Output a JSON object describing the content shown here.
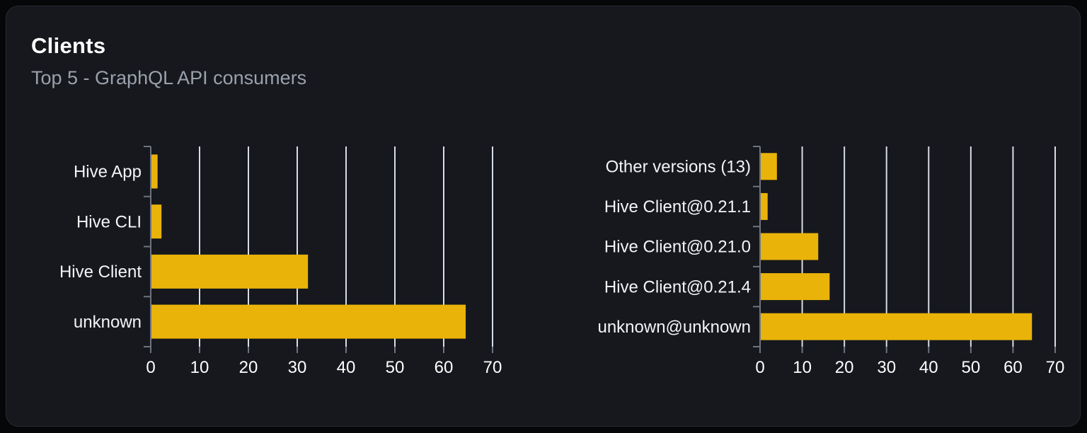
{
  "card": {
    "title": "Clients",
    "subtitle": "Top 5 - GraphQL API consumers"
  },
  "colors": {
    "page_bg": "#060708",
    "card_bg": "#16181d",
    "card_border": "#272b33",
    "title": "#ffffff",
    "subtitle": "#9aa1ac",
    "bar": "#e9b30a",
    "grid_line": "#d7dde6",
    "axis": "#6e7480",
    "category_label": "#f3f4f6",
    "tick_label": "#ffffff"
  },
  "chart_data": [
    {
      "type": "bar",
      "orientation": "horizontal",
      "title": "",
      "xlabel": "",
      "ylabel": "",
      "categories": [
        "Hive App",
        "Hive CLI",
        "Hive Client",
        "unknown"
      ],
      "values": [
        1.4,
        2.2,
        32.2,
        64.5
      ],
      "xlim": [
        0,
        70
      ],
      "xticks": [
        0,
        10,
        20,
        30,
        40,
        50,
        60,
        70
      ],
      "grid": true,
      "legend": false
    },
    {
      "type": "bar",
      "orientation": "horizontal",
      "title": "",
      "xlabel": "",
      "ylabel": "",
      "categories": [
        "Other versions (13)",
        "Hive Client@0.21.1",
        "Hive Client@0.21.0",
        "Hive Client@0.21.4",
        "unknown@unknown"
      ],
      "values": [
        4.0,
        1.8,
        13.8,
        16.5,
        64.5
      ],
      "xlim": [
        0,
        70
      ],
      "xticks": [
        0,
        10,
        20,
        30,
        40,
        50,
        60,
        70
      ],
      "grid": true,
      "legend": false
    }
  ]
}
